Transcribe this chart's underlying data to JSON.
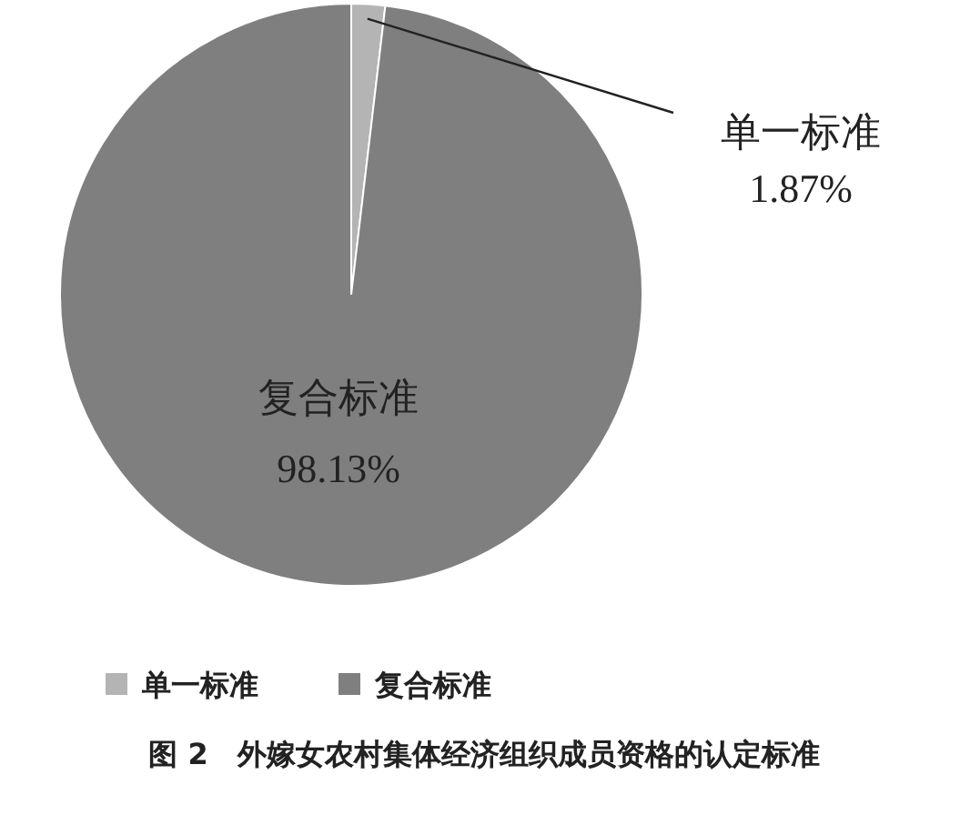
{
  "chart_data": {
    "type": "pie",
    "title": "图 2　外嫁女农村集体经济组织成员资格的认定标准",
    "categories": [
      "单一标准",
      "复合标准"
    ],
    "values": [
      1.87,
      98.13
    ],
    "value_labels": [
      "1.87%",
      "98.13%"
    ],
    "colors": [
      "#b4b4b4",
      "#7f7f7f"
    ],
    "legend": "bottom"
  }
}
